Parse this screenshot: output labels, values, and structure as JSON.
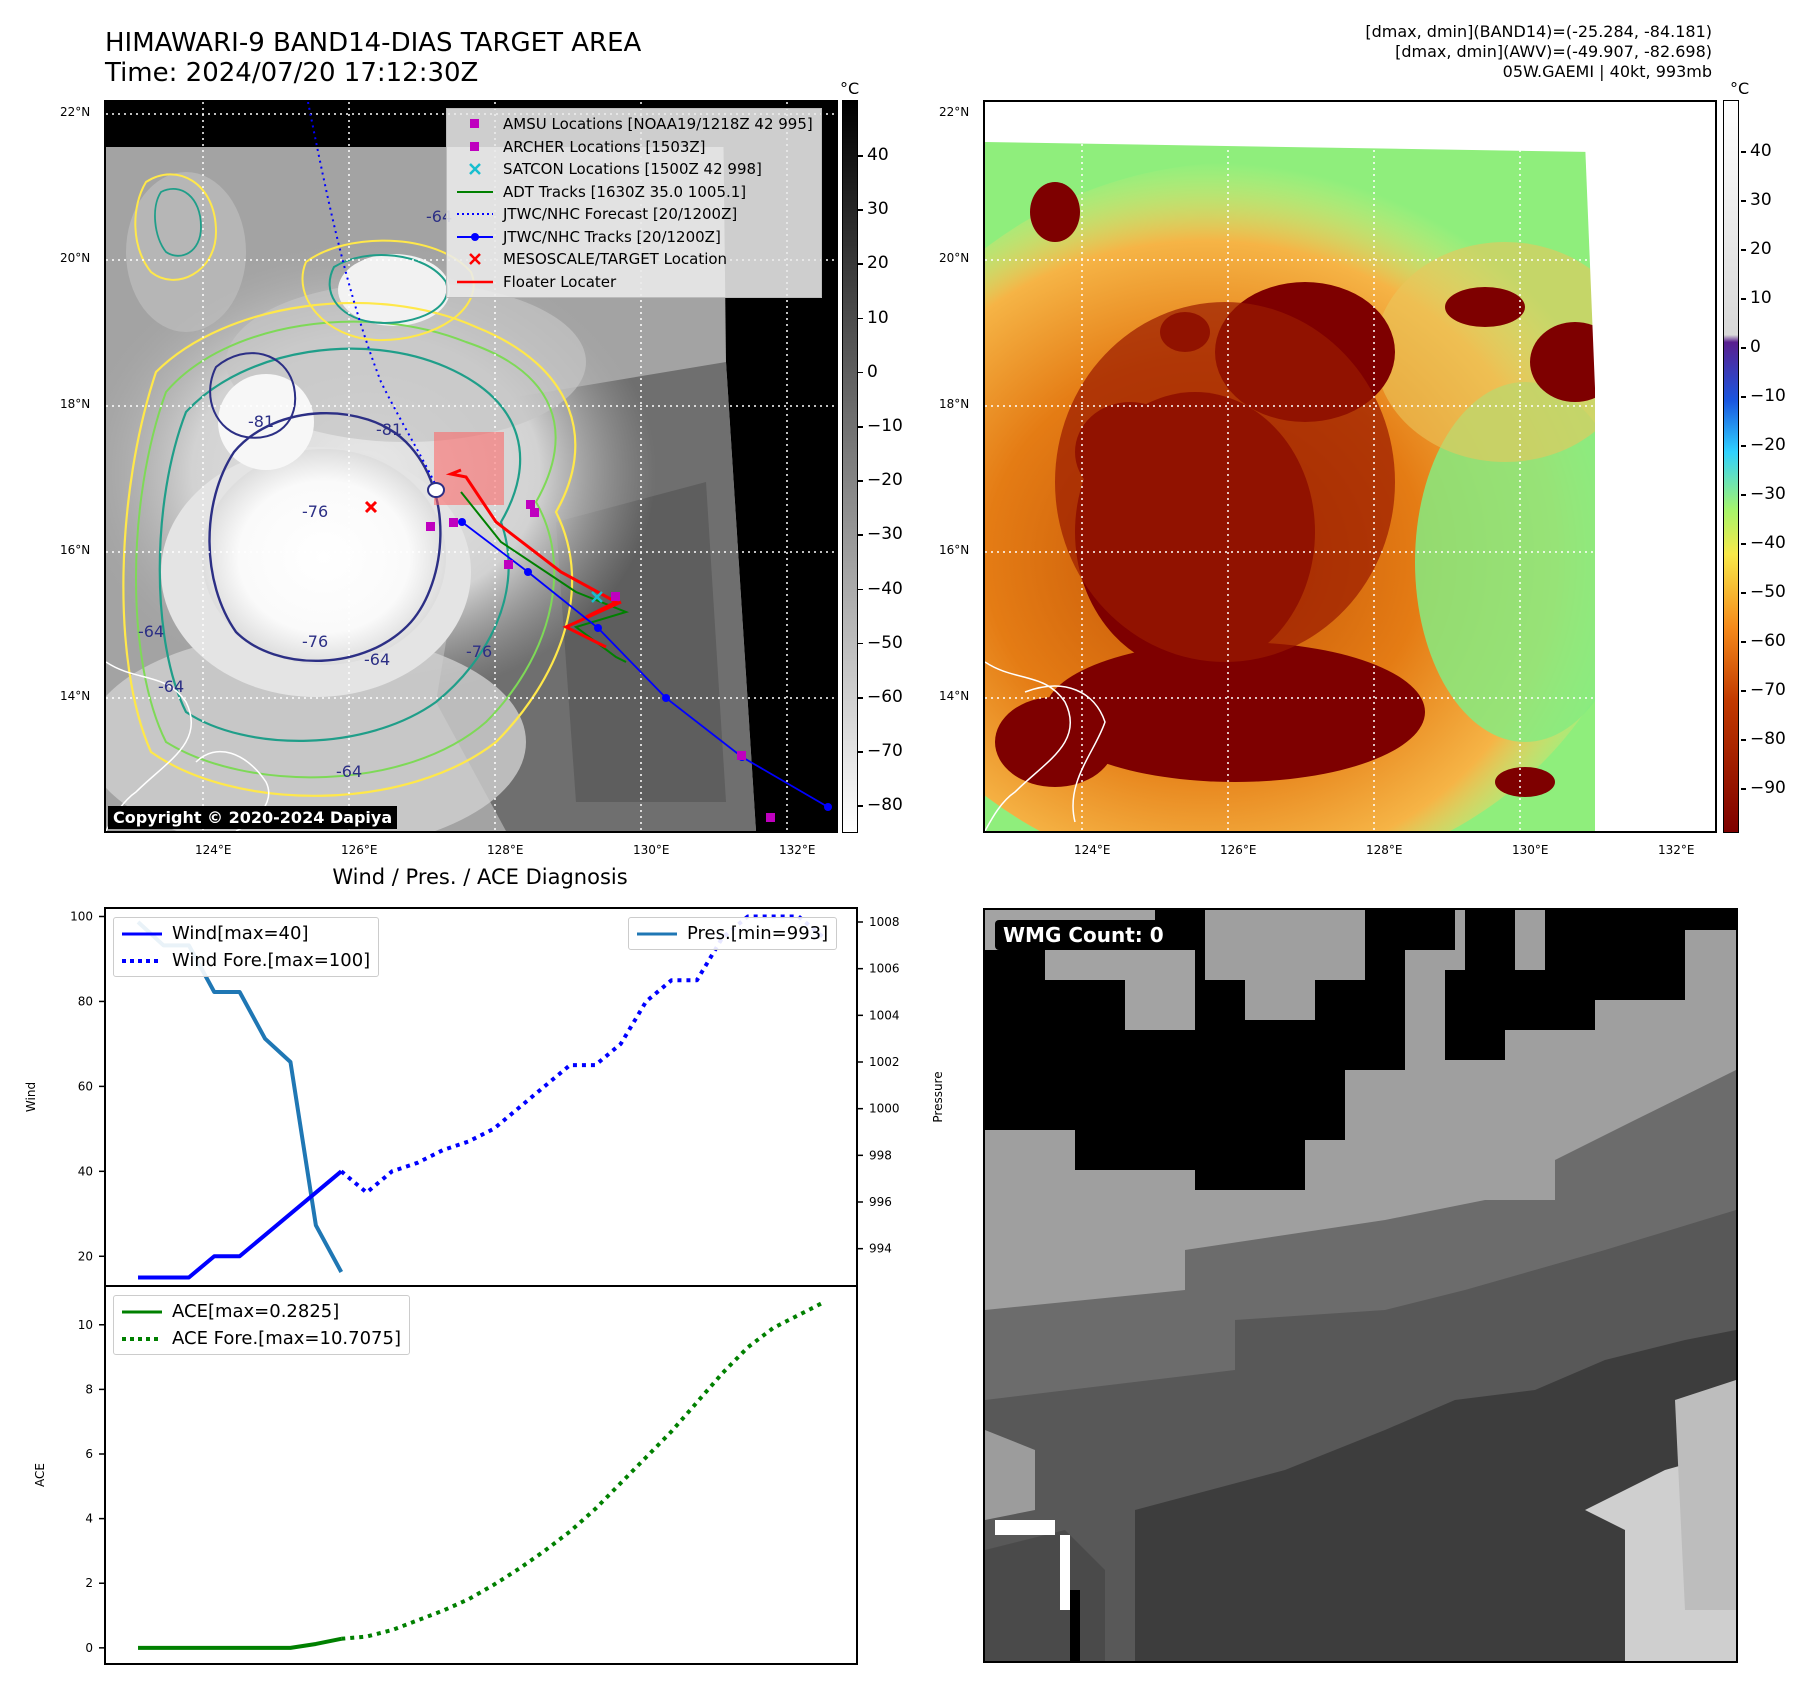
{
  "header": {
    "title_line1": "HIMAWARI-9 BAND14-DIAS TARGET AREA",
    "title_line2": "Time: 2024/07/20 17:12:30Z",
    "right_line1": "[dmax, dmin](BAND14)=(-25.284, -84.181)",
    "right_line2": "[dmax, dmin](AWV)=(-49.907, -82.698)",
    "right_line3": "05W.GAEMI | 40kt, 993mb"
  },
  "map": {
    "lat_labels": [
      "22°N",
      "20°N",
      "18°N",
      "16°N",
      "14°N"
    ],
    "lon_labels": [
      "124°E",
      "126°E",
      "128°E",
      "130°E",
      "132°E"
    ],
    "contour_labels": [
      "-64",
      "-76",
      "-81",
      "-81",
      "-76",
      "-64",
      "-76",
      "-64",
      "-64",
      "-64"
    ],
    "legend": [
      {
        "label": "AMSU Locations [NOAA19/1218Z 42 995]",
        "icon": "magenta-square",
        "color": "#bf00bf"
      },
      {
        "label": "ARCHER Locations [1503Z]",
        "icon": "magenta-square",
        "color": "#bf00bf"
      },
      {
        "label": "SATCON Locations [1500Z 42 998]",
        "icon": "cyan-x",
        "color": "#17becf"
      },
      {
        "label": "ADT Tracks [1630Z 35.0 1005.1]",
        "icon": "green-line",
        "color": "#008000"
      },
      {
        "label": "JTWC/NHC Forecast [20/1200Z]",
        "icon": "blue-dotted-line",
        "color": "#0000ff"
      },
      {
        "label": "JTWC/NHC Tracks [20/1200Z]",
        "icon": "blue-line-dot",
        "color": "#0000ff"
      },
      {
        "label": "MESOSCALE/TARGET Location",
        "icon": "red-x",
        "color": "#ff0000"
      },
      {
        "label": "Floater Locater",
        "icon": "red-line",
        "color": "#ff0000"
      }
    ],
    "copyright": "Copyright © 2020-2024 Dapiya"
  },
  "colorbars": {
    "unit": "°C",
    "left_ticks": [
      "40",
      "30",
      "20",
      "10",
      "0",
      "−10",
      "−20",
      "−30",
      "−40",
      "−50",
      "−60",
      "−70",
      "−80"
    ],
    "right_ticks": [
      "40",
      "30",
      "20",
      "10",
      "0",
      "−10",
      "−20",
      "−30",
      "−40",
      "−50",
      "−60",
      "−70",
      "−80",
      "−90"
    ]
  },
  "chart_data": [
    {
      "type": "line",
      "title": "Wind / Pres. / ACE Diagnosis",
      "ylabel": "Wind",
      "ylabel2": "Pressure",
      "ylim": [
        13,
        102
      ],
      "y2lim": [
        992.4,
        1008.6
      ],
      "yticks": [
        20,
        40,
        60,
        80,
        100
      ],
      "y2ticks": [
        994,
        996,
        998,
        1000,
        1002,
        1004,
        1006,
        1008
      ],
      "series": [
        {
          "name": "Wind[max=40]",
          "axis": "left",
          "color": "#0000ff",
          "style": "solid",
          "x": [
            0,
            1,
            2,
            3,
            4,
            5,
            6,
            7,
            8
          ],
          "values": [
            15,
            15,
            15,
            20,
            20,
            25,
            30,
            35,
            40
          ]
        },
        {
          "name": "Wind Fore.[max=100]",
          "axis": "left",
          "color": "#0000ff",
          "style": "dotted",
          "x": [
            8,
            9,
            10,
            11,
            12,
            13,
            14,
            15,
            16,
            17,
            18,
            19,
            20,
            21,
            22,
            23,
            24,
            25,
            26,
            27
          ],
          "values": [
            40,
            35,
            40,
            42,
            45,
            47,
            50,
            55,
            60,
            65,
            65,
            70,
            80,
            85,
            85,
            95,
            100,
            100,
            100,
            95
          ]
        },
        {
          "name": "Pres.[min=993]",
          "axis": "right",
          "color": "#1f77b4",
          "style": "solid",
          "x": [
            0,
            1,
            2,
            3,
            4,
            5,
            6,
            7,
            8
          ],
          "values": [
            1008,
            1007,
            1007,
            1005,
            1005,
            1003,
            1002,
            995,
            993
          ]
        }
      ]
    },
    {
      "type": "line",
      "ylabel": "ACE",
      "ylim": [
        -0.5,
        11.2
      ],
      "yticks": [
        0,
        2,
        4,
        6,
        8,
        10
      ],
      "series": [
        {
          "name": "ACE[max=0.2825]",
          "color": "#008000",
          "style": "solid",
          "x": [
            0,
            1,
            2,
            3,
            4,
            5,
            6,
            7,
            8
          ],
          "values": [
            0,
            0,
            0,
            0,
            0,
            0,
            0,
            0.12,
            0.28
          ]
        },
        {
          "name": "ACE Fore.[max=10.7075]",
          "color": "#008000",
          "style": "dotted",
          "x": [
            8,
            9,
            10,
            11,
            12,
            13,
            14,
            15,
            16,
            17,
            18,
            19,
            20,
            21,
            22,
            23,
            24,
            25,
            26,
            27
          ],
          "values": [
            0.28,
            0.35,
            0.55,
            0.85,
            1.15,
            1.5,
            1.95,
            2.45,
            3.0,
            3.6,
            4.3,
            5.1,
            5.9,
            6.7,
            7.6,
            8.5,
            9.3,
            9.9,
            10.3,
            10.7
          ]
        }
      ]
    }
  ],
  "wmg": {
    "label": "WMG Count: 0"
  }
}
